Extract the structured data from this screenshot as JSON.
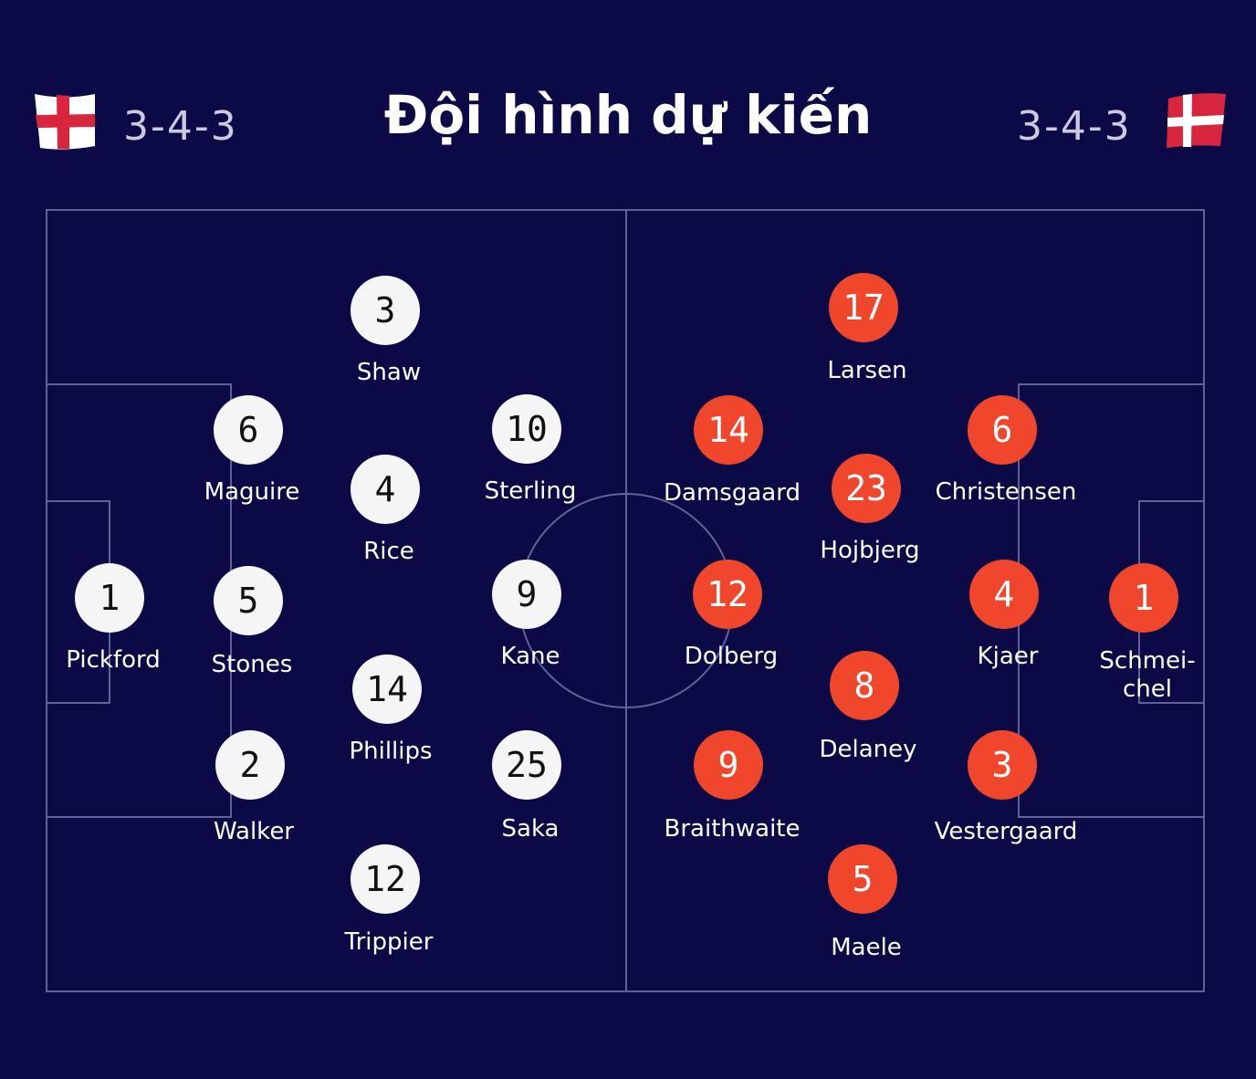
{
  "title": "Đội hình dự kiến",
  "teams": [
    {
      "formation": "3-4-3",
      "players": [
        {
          "number": "1",
          "name": "Pickford"
        },
        {
          "number": "6",
          "name": "Maguire"
        },
        {
          "number": "5",
          "name": "Stones"
        },
        {
          "number": "2",
          "name": "Walker"
        },
        {
          "number": "3",
          "name": "Shaw"
        },
        {
          "number": "4",
          "name": "Rice"
        },
        {
          "number": "14",
          "name": "Phillips"
        },
        {
          "number": "12",
          "name": "Trippier"
        },
        {
          "number": "10",
          "name": "Sterling"
        },
        {
          "number": "9",
          "name": "Kane"
        },
        {
          "number": "25",
          "name": "Saka"
        }
      ]
    },
    {
      "formation": "3-4-3",
      "players": [
        {
          "number": "17",
          "name": "Larsen"
        },
        {
          "number": "14",
          "name": "Damsgaard"
        },
        {
          "number": "23",
          "name": "Hojbjerg"
        },
        {
          "number": "6",
          "name": "Christensen"
        },
        {
          "number": "12",
          "name": "Dolberg"
        },
        {
          "number": "8",
          "name": "Delaney"
        },
        {
          "number": "4",
          "name": "Kjaer"
        },
        {
          "number": "1",
          "name": "Schmei-\nchel"
        },
        {
          "number": "9",
          "name": "Braithwaite"
        },
        {
          "number": "3",
          "name": "Vestergaard"
        },
        {
          "number": "5",
          "name": "Maele"
        }
      ]
    }
  ]
}
